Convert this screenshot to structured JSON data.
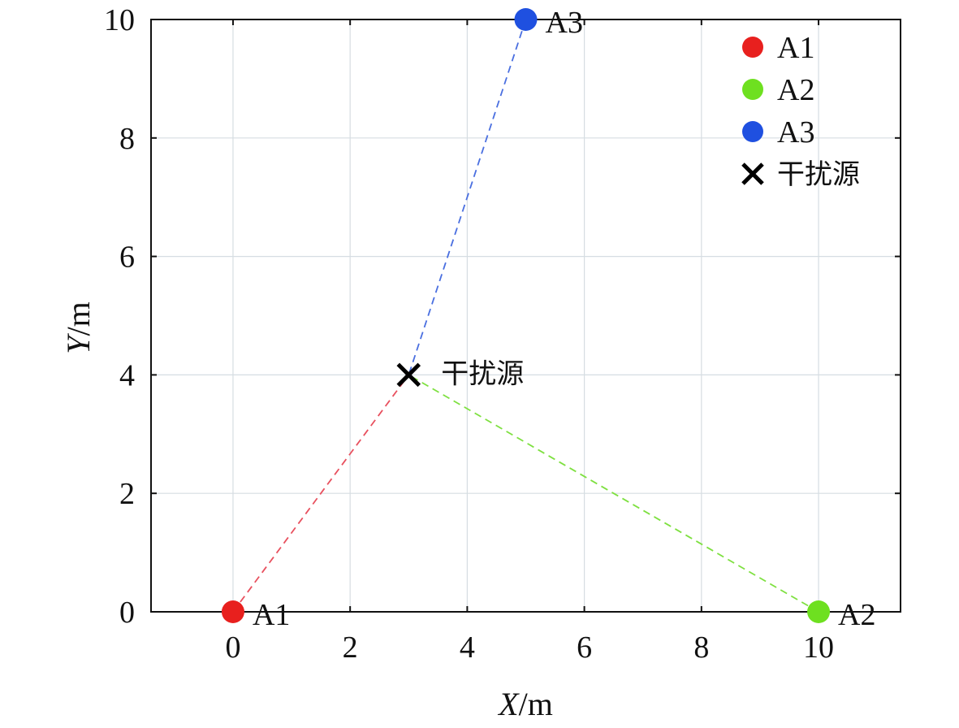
{
  "chart_data": {
    "type": "scatter",
    "xlabel": {
      "var": "X",
      "unit": "/m"
    },
    "ylabel": {
      "var": "Y",
      "unit": "/m"
    },
    "xlim": [
      -1.4,
      11.4
    ],
    "ylim": [
      0,
      10
    ],
    "xticks": [
      "0",
      "2",
      "4",
      "6",
      "8",
      "10"
    ],
    "yticks": [
      "0",
      "2",
      "4",
      "6",
      "8",
      "10"
    ],
    "grid": true,
    "legend_position": "top-right",
    "series": [
      {
        "name": "A1",
        "label": "A1",
        "marker": "circle",
        "color": "#e8201e",
        "x": 0,
        "y": 0,
        "link_color": "#e8505e"
      },
      {
        "name": "A2",
        "label": "A2",
        "marker": "circle",
        "color": "#6ee020",
        "x": 10,
        "y": 0,
        "link_color": "#7ee040"
      },
      {
        "name": "A3",
        "label": "A3",
        "marker": "circle",
        "color": "#1f50e0",
        "x": 5,
        "y": 10,
        "link_color": "#4a6fe0"
      },
      {
        "name": "干扰源",
        "label": "干扰源",
        "marker": "x",
        "color": "#000000",
        "x": 3,
        "y": 4
      }
    ]
  }
}
